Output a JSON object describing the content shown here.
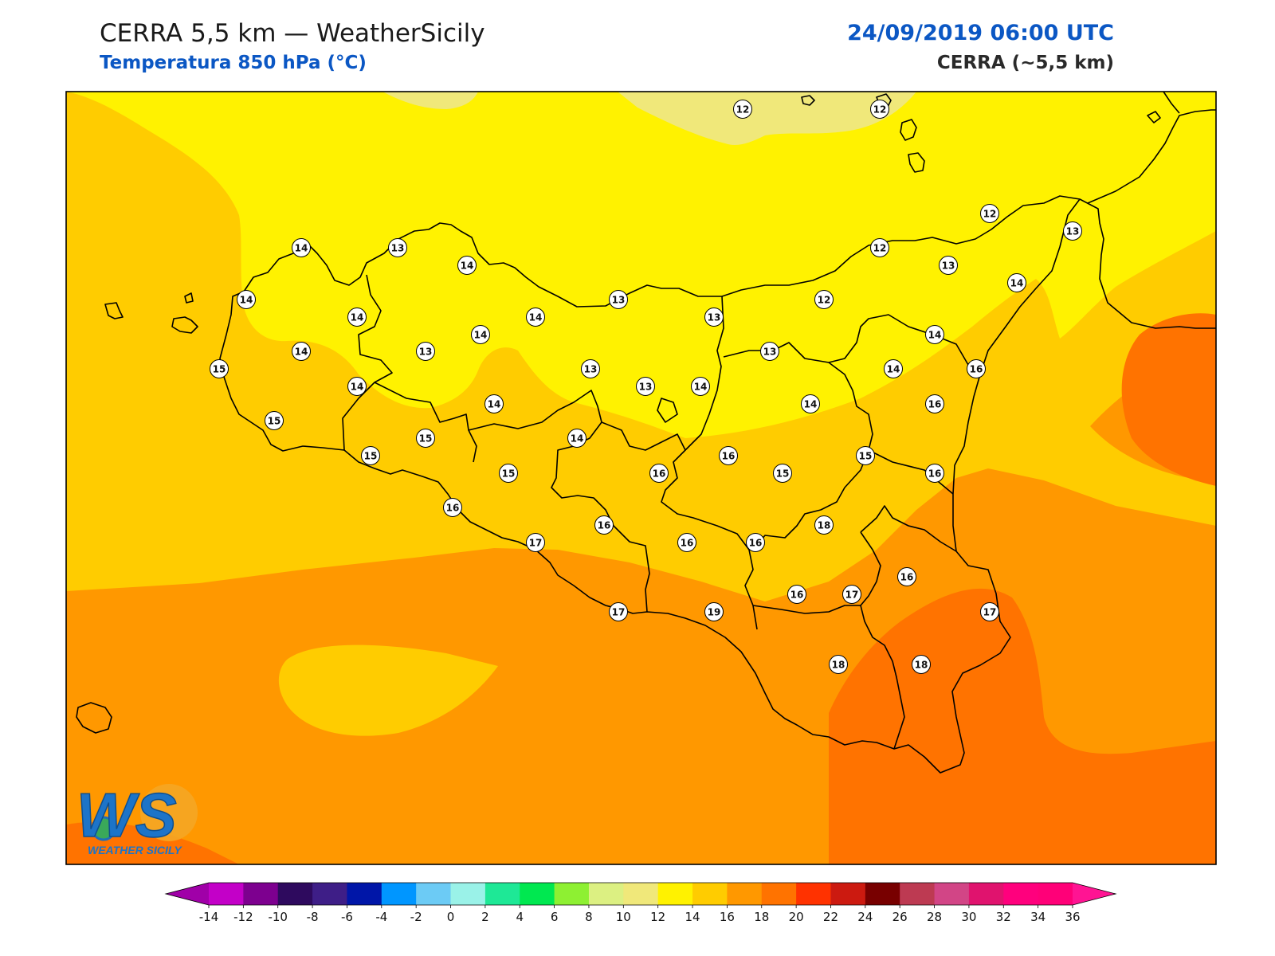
{
  "header": {
    "title": "CERRA 5,5 km — WeatherSicily",
    "subtitle": "Temperatura 850 hPa (°C)",
    "datetime": "24/09/2019 06:00 UTC",
    "model": "CERRA (~5,5 km)"
  },
  "logo": {
    "letters": "WS",
    "caption": "WEATHER SICILY"
  },
  "colorbar": {
    "min": -14,
    "max": 36,
    "step": 2,
    "extend": "both",
    "tick_labels": [
      "-14",
      "-12",
      "-10",
      "-8",
      "-6",
      "-4",
      "-2",
      "0",
      "2",
      "4",
      "6",
      "8",
      "10",
      "12",
      "14",
      "16",
      "18",
      "20",
      "22",
      "24",
      "26",
      "28",
      "30",
      "32",
      "34",
      "36"
    ],
    "colors": [
      "#c300c8",
      "#7d008f",
      "#2e0a5e",
      "#3e1e87",
      "#0016a8",
      "#0096ff",
      "#6ccbf5",
      "#9af2e8",
      "#1ee896",
      "#00e850",
      "#8ef032",
      "#dcf082",
      "#f0e87a",
      "#fff200",
      "#ffcc00",
      "#ff9800",
      "#ff7300",
      "#ff3200",
      "#cc1a10",
      "#780000",
      "#bd3a52",
      "#d24586",
      "#e0136e",
      "#ff007d",
      "#ff0078"
    ],
    "under_color": "#a000a8",
    "over_color": "#ff1493"
  },
  "map": {
    "field_colors": {
      "10-12": "#f0e87a",
      "12-14": "#fff200",
      "14-16": "#ffcc00",
      "16-18": "#ff9800",
      "18-20": "#ff7300"
    },
    "stations": [
      {
        "value": "12"
      },
      {
        "value": "12"
      },
      {
        "value": "12"
      },
      {
        "value": "13"
      },
      {
        "value": "12"
      },
      {
        "value": "13"
      },
      {
        "value": "14"
      },
      {
        "value": "14"
      },
      {
        "value": "13"
      },
      {
        "value": "14"
      },
      {
        "value": "14"
      },
      {
        "value": "14"
      },
      {
        "value": "14"
      },
      {
        "value": "13"
      },
      {
        "value": "12"
      },
      {
        "value": "13"
      },
      {
        "value": "14"
      },
      {
        "value": "13"
      },
      {
        "value": "14"
      },
      {
        "value": "15"
      },
      {
        "value": "14"
      },
      {
        "value": "13"
      },
      {
        "value": "13"
      },
      {
        "value": "13"
      },
      {
        "value": "14"
      },
      {
        "value": "16"
      },
      {
        "value": "14"
      },
      {
        "value": "14"
      },
      {
        "value": "16"
      },
      {
        "value": "15"
      },
      {
        "value": "15"
      },
      {
        "value": "14"
      },
      {
        "value": "15"
      },
      {
        "value": "14"
      },
      {
        "value": "15"
      },
      {
        "value": "14"
      },
      {
        "value": "15"
      },
      {
        "value": "15"
      },
      {
        "value": "16"
      },
      {
        "value": "16"
      },
      {
        "value": "16"
      },
      {
        "value": "16"
      },
      {
        "value": "16"
      },
      {
        "value": "17"
      },
      {
        "value": "16"
      },
      {
        "value": "16"
      },
      {
        "value": "18"
      },
      {
        "value": "16"
      },
      {
        "value": "16"
      },
      {
        "value": "17"
      },
      {
        "value": "17"
      },
      {
        "value": "19"
      },
      {
        "value": "17"
      },
      {
        "value": "18"
      },
      {
        "value": "18"
      }
    ]
  }
}
